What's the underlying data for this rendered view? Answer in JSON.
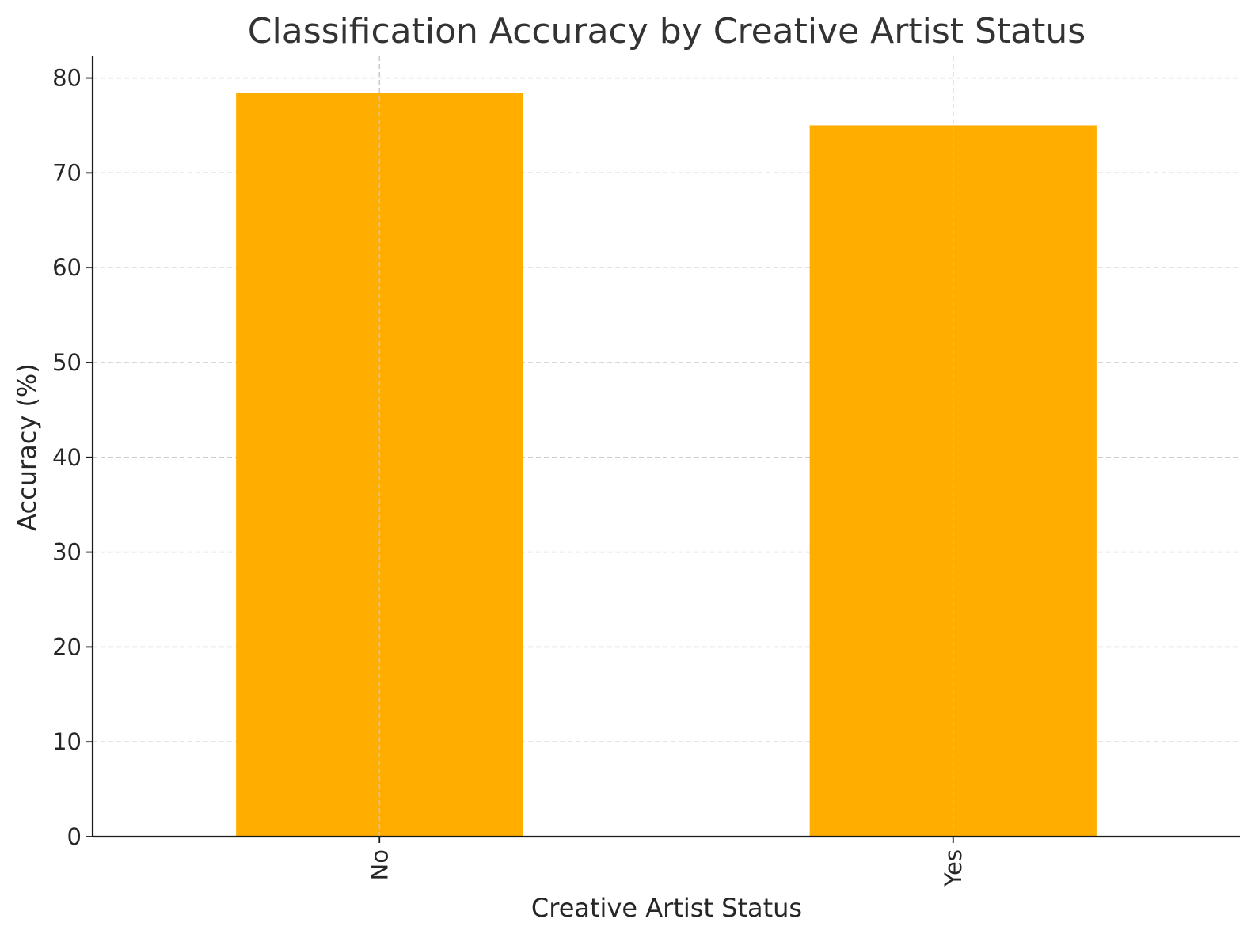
{
  "chart_data": {
    "type": "bar",
    "title": "Classification Accuracy by Creative Artist Status",
    "xlabel": "Creative Artist Status",
    "ylabel": "Accuracy (%)",
    "categories": [
      "No",
      "Yes"
    ],
    "values": [
      78.4,
      75.0
    ],
    "ylim": [
      0,
      82.3
    ],
    "yticks": [
      0,
      10,
      20,
      30,
      40,
      50,
      60,
      70,
      80
    ],
    "bar_color": "#FFAE00",
    "grid": true,
    "legend": "none"
  }
}
